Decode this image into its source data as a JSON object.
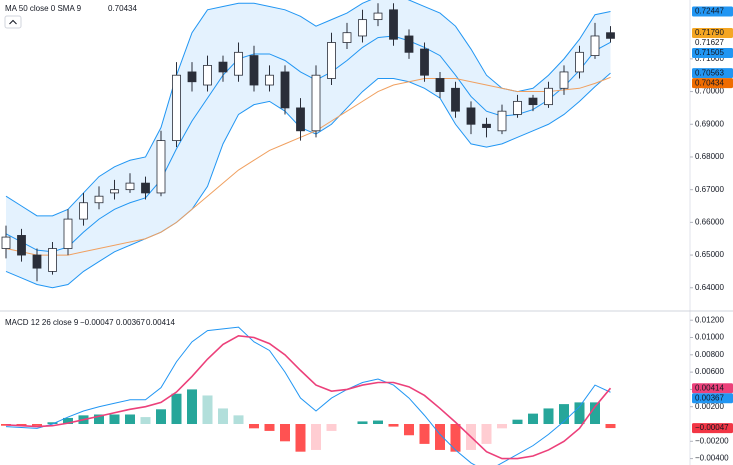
{
  "chart_data": [
    {
      "type": "candlestick",
      "legend_text": "MA 50 close 0 SMA 9",
      "legend_value": "0.70434",
      "legend_value_color": "#ef6c00",
      "open": [
        0.652,
        0.656,
        0.65,
        0.645,
        0.652,
        0.661,
        0.666,
        0.669,
        0.67,
        0.672,
        0.669,
        0.685,
        0.706,
        0.702,
        0.709,
        0.705,
        0.711,
        0.702,
        0.706,
        0.695,
        0.688,
        0.704,
        0.715,
        0.717,
        0.722,
        0.725,
        0.717,
        0.713,
        0.704,
        0.701,
        0.695,
        0.69,
        0.688,
        0.693,
        0.698,
        0.696,
        0.701,
        0.706,
        0.711,
        0.718
      ],
      "high": [
        0.659,
        0.658,
        0.652,
        0.654,
        0.664,
        0.669,
        0.671,
        0.673,
        0.675,
        0.674,
        0.688,
        0.709,
        0.709,
        0.711,
        0.711,
        0.715,
        0.714,
        0.708,
        0.708,
        0.698,
        0.708,
        0.718,
        0.721,
        0.725,
        0.727,
        0.727,
        0.719,
        0.715,
        0.706,
        0.703,
        0.697,
        0.692,
        0.696,
        0.699,
        0.699,
        0.703,
        0.708,
        0.714,
        0.721,
        0.72
      ],
      "low": [
        0.649,
        0.648,
        0.642,
        0.644,
        0.65,
        0.659,
        0.664,
        0.667,
        0.669,
        0.667,
        0.668,
        0.683,
        0.7,
        0.7,
        0.703,
        0.703,
        0.7,
        0.7,
        0.693,
        0.685,
        0.686,
        0.702,
        0.713,
        0.715,
        0.72,
        0.714,
        0.71,
        0.703,
        0.698,
        0.692,
        0.687,
        0.686,
        0.687,
        0.692,
        0.694,
        0.695,
        0.699,
        0.704,
        0.71,
        0.715
      ],
      "close": [
        0.6555,
        0.65,
        0.646,
        0.652,
        0.661,
        0.666,
        0.668,
        0.67,
        0.672,
        0.669,
        0.685,
        0.705,
        0.703,
        0.708,
        0.706,
        0.712,
        0.702,
        0.705,
        0.695,
        0.688,
        0.705,
        0.715,
        0.718,
        0.722,
        0.724,
        0.716,
        0.712,
        0.705,
        0.7,
        0.694,
        0.69,
        0.689,
        0.694,
        0.697,
        0.696,
        0.701,
        0.706,
        0.712,
        0.717,
        0.71627
      ],
      "up_color": "#ffffff",
      "down_color": "#2a2e39",
      "wick_color": "#2a2e39",
      "bands": {
        "color": "#2196f3",
        "fill": "#2196f3",
        "upper": [
          0.668,
          0.665,
          0.662,
          0.662,
          0.664,
          0.669,
          0.674,
          0.677,
          0.679,
          0.68,
          0.689,
          0.705,
          0.718,
          0.725,
          0.726,
          0.727,
          0.727,
          0.726,
          0.725,
          0.723,
          0.72,
          0.722,
          0.724,
          0.727,
          0.729,
          0.73,
          0.728,
          0.726,
          0.724,
          0.72,
          0.713,
          0.705,
          0.701,
          0.7,
          0.701,
          0.705,
          0.71,
          0.716,
          0.7235,
          0.72447
        ],
        "basis": [
          0.6565,
          0.654,
          0.6515,
          0.651,
          0.6525,
          0.657,
          0.661,
          0.664,
          0.666,
          0.6675,
          0.673,
          0.6825,
          0.691,
          0.698,
          0.705,
          0.71,
          0.7115,
          0.7115,
          0.7095,
          0.706,
          0.7035,
          0.706,
          0.7095,
          0.7135,
          0.7165,
          0.717,
          0.7155,
          0.7135,
          0.711,
          0.705,
          0.6985,
          0.694,
          0.6925,
          0.693,
          0.6945,
          0.6975,
          0.7015,
          0.7065,
          0.7125,
          0.71505
        ],
        "lower": [
          0.645,
          0.643,
          0.641,
          0.64,
          0.641,
          0.645,
          0.648,
          0.651,
          0.653,
          0.655,
          0.657,
          0.66,
          0.664,
          0.671,
          0.684,
          0.693,
          0.696,
          0.697,
          0.694,
          0.689,
          0.687,
          0.69,
          0.695,
          0.7,
          0.704,
          0.704,
          0.703,
          0.701,
          0.698,
          0.69,
          0.684,
          0.683,
          0.684,
          0.686,
          0.688,
          0.69,
          0.693,
          0.697,
          0.7015,
          0.70563
        ]
      },
      "ma": {
        "color": "#f0a060",
        "values": [
          0.652,
          0.651,
          0.65,
          0.65,
          0.65,
          0.651,
          0.652,
          0.653,
          0.654,
          0.655,
          0.657,
          0.66,
          0.664,
          0.668,
          0.672,
          0.676,
          0.679,
          0.682,
          0.684,
          0.686,
          0.688,
          0.691,
          0.694,
          0.697,
          0.7,
          0.702,
          0.703,
          0.704,
          0.704,
          0.704,
          0.703,
          0.702,
          0.701,
          0.7,
          0.7,
          0.7,
          0.7005,
          0.701,
          0.7025,
          0.70434
        ]
      },
      "ylim": [
        0.6332,
        0.728
      ],
      "yticks": [
        {
          "value": 0.64,
          "label": "0.64000"
        },
        {
          "value": 0.65,
          "label": "0.65000"
        },
        {
          "value": 0.66,
          "label": "0.66000"
        },
        {
          "value": 0.67,
          "label": "0.67000"
        },
        {
          "value": 0.68,
          "label": "0.68000"
        },
        {
          "value": 0.69,
          "label": "0.69000"
        },
        {
          "value": 0.7,
          "label": "0.70000"
        },
        {
          "value": 0.71,
          "label": "0.71000"
        }
      ],
      "price_labels": [
        {
          "value": 0.72447,
          "label": "0.72447",
          "color": "#2196f3"
        },
        {
          "value": 0.7179,
          "label": "0.71790",
          "color": "#f5a623"
        },
        {
          "value": 0.71627,
          "label": "0.71627"
        },
        {
          "value": 0.71505,
          "label": "0.71505",
          "color": "#2196f3"
        },
        {
          "value": 0.70563,
          "label": "0.70563",
          "color": "#2196f3"
        },
        {
          "value": 0.70434,
          "label": "0.70434",
          "color": "#ef6c00"
        }
      ]
    },
    {
      "type": "macd",
      "legend_text": "MACD 12 26 close 9",
      "legend_values": [
        {
          "label": "−0.00047",
          "color": "#f23645"
        },
        {
          "label": "0.00367",
          "color": "#2196f3"
        },
        {
          "label": "0.00414",
          "color": "#ec407a"
        }
      ],
      "histogram": [
        -0.0002,
        -0.0002,
        -0.0002,
        0.0002,
        0.0007,
        0.001,
        0.0011,
        0.0011,
        0.0011,
        0.0008,
        0.0017,
        0.0035,
        0.004,
        0.0033,
        0.0018,
        0.001,
        -0.0005,
        -0.0008,
        -0.002,
        -0.0032,
        -0.003,
        -0.0008,
        0.0,
        0.0003,
        0.0004,
        -0.0003,
        -0.0013,
        -0.0023,
        -0.003,
        -0.0032,
        -0.003,
        -0.0023,
        -0.0005,
        0.0005,
        0.0012,
        0.0018,
        0.0023,
        0.0025,
        0.0025,
        -0.00047
      ],
      "hist_colors": {
        "up_rising": "#26a69a",
        "up_falling": "#b2dfdb",
        "down_falling": "#ff5252",
        "down_rising": "#ffcdd2"
      },
      "macd": {
        "color": "#2196f3",
        "values": [
          -0.0003,
          -0.0004,
          -0.0005,
          0.0,
          0.0008,
          0.0015,
          0.002,
          0.0024,
          0.0028,
          0.0028,
          0.0042,
          0.0072,
          0.0095,
          0.0108,
          0.011,
          0.0112,
          0.0095,
          0.0085,
          0.006,
          0.003,
          0.0015,
          0.003,
          0.004,
          0.0048,
          0.0052,
          0.0045,
          0.003,
          0.001,
          -0.0012,
          -0.003,
          -0.0045,
          -0.0055,
          -0.0045,
          -0.0035,
          -0.0025,
          -0.0012,
          0.0003,
          0.002,
          0.0045,
          0.00367
        ]
      },
      "signal": {
        "color": "#ec407a",
        "values": [
          -0.0001,
          -0.0002,
          -0.0003,
          -0.0002,
          0.0001,
          0.0005,
          0.0009,
          0.0013,
          0.0017,
          0.002,
          0.0025,
          0.0037,
          0.0055,
          0.0075,
          0.0092,
          0.0102,
          0.01,
          0.0093,
          0.008,
          0.0062,
          0.0045,
          0.0038,
          0.004,
          0.0045,
          0.0048,
          0.0048,
          0.0043,
          0.0033,
          0.0018,
          0.0002,
          -0.0015,
          -0.0032,
          -0.004,
          -0.004,
          -0.0037,
          -0.003,
          -0.002,
          -0.0005,
          0.002,
          0.00414
        ]
      },
      "ylim": [
        -0.00474,
        0.01295
      ],
      "yticks": [
        {
          "value": -0.004,
          "label": "−0.00400"
        },
        {
          "value": -0.002,
          "label": "−0.00200"
        },
        {
          "value": 0.002,
          "label": "0.00200"
        },
        {
          "value": 0.004,
          "label": "0.00400"
        },
        {
          "value": 0.006,
          "label": "0.00600"
        },
        {
          "value": 0.008,
          "label": "0.00800"
        },
        {
          "value": 0.01,
          "label": "0.01000"
        },
        {
          "value": 0.012,
          "label": "0.01200"
        }
      ],
      "price_labels": [
        {
          "value": 0.00414,
          "label": "0.00414",
          "color": "#ec407a"
        },
        {
          "value": 0.00367,
          "label": "0.00367",
          "color": "#2196f3"
        },
        {
          "value": -0.00047,
          "label": "−0.00047",
          "color": "#f23645"
        }
      ]
    }
  ]
}
